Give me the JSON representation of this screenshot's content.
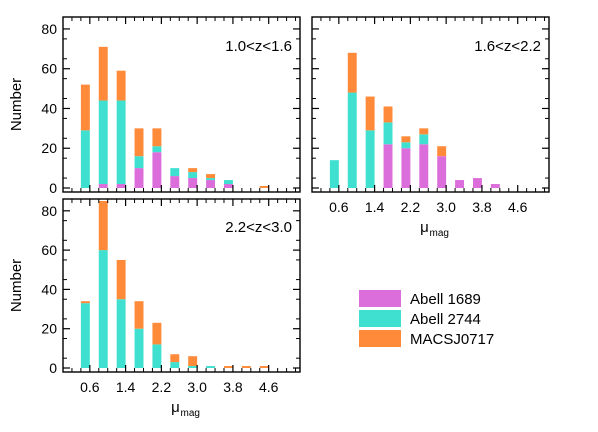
{
  "colors": {
    "Abell 1689": "#dc6edc",
    "Abell 2744": "#40e0d0",
    "MACSJ0717": "#ff8a3a"
  },
  "legend": {
    "items": [
      {
        "label": "Abell 1689",
        "color": "#dc6edc"
      },
      {
        "label": "Abell 2744",
        "color": "#40e0d0"
      },
      {
        "label": "MACSJ0717",
        "color": "#ff8a3a"
      }
    ]
  },
  "chart_data": [
    {
      "type": "bar",
      "stacked": true,
      "panel_label": "1.0<z<1.6",
      "ylabel": "Number",
      "xlabel": "",
      "xlim": [
        0.0,
        5.3
      ],
      "ylim": [
        0,
        85
      ],
      "yticks": [
        0,
        20,
        40,
        60,
        80
      ],
      "xticks": [
        0.6,
        1.4,
        2.2,
        3.0,
        3.8,
        4.6
      ],
      "show_x_tick_labels": false,
      "bin_width": 0.2,
      "x": [
        0.5,
        0.9,
        1.3,
        1.7,
        2.1,
        2.5,
        2.9,
        3.3,
        3.7,
        4.1,
        4.5
      ],
      "series": [
        {
          "name": "Abell 1689",
          "values": [
            0,
            2,
            2,
            10,
            18,
            6,
            5,
            4,
            2,
            0,
            0
          ]
        },
        {
          "name": "Abell 2744",
          "values": [
            29,
            42,
            42,
            6,
            3,
            4,
            3,
            1,
            2,
            0,
            0
          ]
        },
        {
          "name": "MACSJ0717",
          "values": [
            23,
            27,
            15,
            14,
            9,
            0,
            2,
            2,
            0,
            0,
            1
          ]
        }
      ]
    },
    {
      "type": "bar",
      "stacked": true,
      "panel_label": "1.6<z<2.2",
      "ylabel": "",
      "xlabel": "μ",
      "xlabel_sub": "mag",
      "xlim": [
        0.0,
        5.3
      ],
      "ylim": [
        0,
        85
      ],
      "yticks": [
        0,
        20,
        40,
        60,
        80
      ],
      "xticks": [
        0.6,
        1.4,
        2.2,
        3.0,
        3.8,
        4.6
      ],
      "show_x_tick_labels": true,
      "bin_width": 0.2,
      "x": [
        0.5,
        0.9,
        1.3,
        1.7,
        2.1,
        2.5,
        2.9,
        3.3,
        3.7,
        4.1
      ],
      "series": [
        {
          "name": "Abell 1689",
          "values": [
            0,
            0,
            0,
            22,
            20,
            22,
            16,
            4,
            5,
            2
          ]
        },
        {
          "name": "Abell 2744",
          "values": [
            14,
            48,
            29,
            11,
            3,
            5,
            0,
            0,
            0,
            0
          ]
        },
        {
          "name": "MACSJ0717",
          "values": [
            0,
            20,
            17,
            8,
            3,
            3,
            5,
            0,
            0,
            0
          ]
        }
      ]
    },
    {
      "type": "bar",
      "stacked": true,
      "panel_label": "2.2<z<3.0",
      "ylabel": "Number",
      "xlabel": "μ",
      "xlabel_sub": "mag",
      "xlim": [
        0.0,
        5.3
      ],
      "ylim": [
        0,
        85
      ],
      "yticks": [
        0,
        20,
        40,
        60,
        80
      ],
      "xticks": [
        0.6,
        1.4,
        2.2,
        3.0,
        3.8,
        4.6
      ],
      "show_x_tick_labels": true,
      "bin_width": 0.2,
      "x": [
        0.5,
        0.9,
        1.3,
        1.7,
        2.1,
        2.5,
        2.9,
        3.3,
        3.7,
        4.1,
        4.5
      ],
      "series": [
        {
          "name": "Abell 1689",
          "values": [
            0,
            0,
            0,
            0,
            0,
            0,
            0,
            0,
            0,
            0,
            0
          ]
        },
        {
          "name": "Abell 2744",
          "values": [
            33,
            60,
            35,
            20,
            12,
            3,
            1,
            1,
            0,
            0,
            0
          ]
        },
        {
          "name": "MACSJ0717",
          "values": [
            1,
            25,
            20,
            14,
            11,
            4,
            5,
            0,
            1,
            1,
            1
          ]
        }
      ]
    }
  ]
}
